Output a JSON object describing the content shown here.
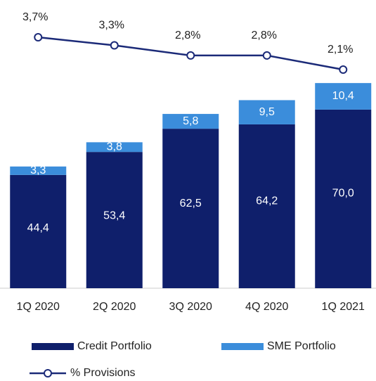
{
  "chart_data": {
    "type": "bar",
    "categories": [
      "1Q 2020",
      "2Q 2020",
      "3Q 2020",
      "4Q 2020",
      "1Q 2021"
    ],
    "series": [
      {
        "name": "Credit Portfolio",
        "color": "#0f1f6b",
        "values": [
          44.4,
          53.4,
          62.5,
          64.2,
          70.0
        ],
        "value_labels": [
          "44,4",
          "53,4",
          "62,5",
          "64,2",
          "70,0"
        ]
      },
      {
        "name": "SME Portfolio",
        "color": "#3b8ddb",
        "values": [
          3.3,
          3.8,
          5.8,
          9.5,
          10.4
        ],
        "value_labels": [
          "3,3",
          "3,8",
          "5,8",
          "9,5",
          "10,4"
        ]
      },
      {
        "name": "% Provisions",
        "type": "line",
        "color": "#1b2a78",
        "values": [
          3.7,
          3.3,
          2.8,
          2.8,
          2.1
        ],
        "value_labels": [
          "3,7%",
          "3,3%",
          "2,8%",
          "2,8%",
          "2,1%"
        ]
      }
    ],
    "stacked": true
  }
}
